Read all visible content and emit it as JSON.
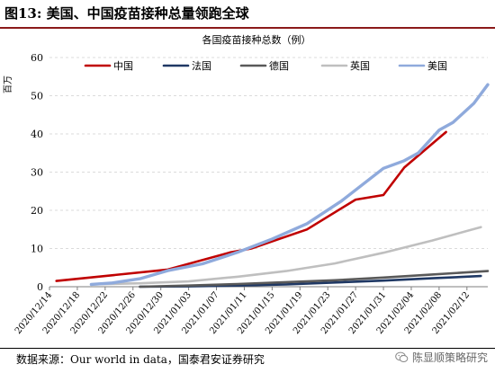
{
  "figure": {
    "title": "图13: 美国、中国疫苗接种总量领跑全球",
    "source": "数据来源：Our world in data，国泰君安证券研究",
    "watermark": "陈显顺策略研究",
    "watermark_icon": "wechat-icon"
  },
  "chart_data": {
    "type": "line",
    "title": "各国疫苗接种总数（例）",
    "ylabel": "百万",
    "xlabel": "",
    "ylim": [
      0,
      60
    ],
    "yticks": [
      0,
      10,
      20,
      30,
      40,
      50,
      60
    ],
    "xlim": [
      "2020-12-14",
      "2021-02-15"
    ],
    "xticks": [
      "2020/12/14",
      "2020/12/18",
      "2020/12/22",
      "2020/12/26",
      "2020/12/30",
      "2021/01/03",
      "2021/01/07",
      "2021/01/11",
      "2021/01/15",
      "2021/01/19",
      "2021/01/23",
      "2021/01/27",
      "2021/01/31",
      "2021/02/04",
      "2021/02/08",
      "2021/02/12"
    ],
    "grid": "horizontal-dashed",
    "legend_position": "top",
    "series": [
      {
        "name": "中国",
        "color": "#c00000",
        "width": 2.6,
        "points": [
          [
            "2020-12-15",
            1.5
          ],
          [
            "2020-12-31",
            4.5
          ],
          [
            "2021-01-09",
            9.0
          ],
          [
            "2021-01-12",
            10.0
          ],
          [
            "2021-01-20",
            15.0
          ],
          [
            "2021-01-27",
            22.8
          ],
          [
            "2021-01-31",
            24.0
          ],
          [
            "2021-02-03",
            31.2
          ],
          [
            "2021-02-09",
            40.5
          ]
        ]
      },
      {
        "name": "法国",
        "color": "#1f3864",
        "width": 2.6,
        "points": [
          [
            "2020-12-27",
            0.0
          ],
          [
            "2021-01-03",
            0.1
          ],
          [
            "2021-01-10",
            0.3
          ],
          [
            "2021-01-17",
            0.6
          ],
          [
            "2021-01-24",
            1.1
          ],
          [
            "2021-01-31",
            1.6
          ],
          [
            "2021-02-07",
            2.2
          ],
          [
            "2021-02-14",
            2.8
          ]
        ]
      },
      {
        "name": "德国",
        "color": "#595959",
        "width": 2.6,
        "points": [
          [
            "2020-12-27",
            0.0
          ],
          [
            "2021-01-03",
            0.3
          ],
          [
            "2021-01-10",
            0.7
          ],
          [
            "2021-01-17",
            1.2
          ],
          [
            "2021-01-24",
            1.7
          ],
          [
            "2021-01-31",
            2.4
          ],
          [
            "2021-02-07",
            3.2
          ],
          [
            "2021-02-15",
            4.1
          ]
        ]
      },
      {
        "name": "英国",
        "color": "#bfbfbf",
        "width": 2.6,
        "points": [
          [
            "2020-12-20",
            0.6
          ],
          [
            "2020-12-27",
            0.9
          ],
          [
            "2021-01-03",
            1.4
          ],
          [
            "2021-01-10",
            2.6
          ],
          [
            "2021-01-17",
            4.1
          ],
          [
            "2021-01-24",
            6.1
          ],
          [
            "2021-01-31",
            8.9
          ],
          [
            "2021-02-07",
            12.1
          ],
          [
            "2021-02-14",
            15.6
          ]
        ]
      },
      {
        "name": "美国",
        "color": "#8faadc",
        "width": 3.4,
        "points": [
          [
            "2020-12-20",
            0.6
          ],
          [
            "2020-12-23",
            1.0
          ],
          [
            "2020-12-27",
            2.1
          ],
          [
            "2020-12-31",
            4.2
          ],
          [
            "2021-01-05",
            6.0
          ],
          [
            "2021-01-10",
            9.0
          ],
          [
            "2021-01-15",
            12.5
          ],
          [
            "2021-01-20",
            16.5
          ],
          [
            "2021-01-25",
            22.5
          ],
          [
            "2021-01-31",
            31.0
          ],
          [
            "2021-02-03",
            33.0
          ],
          [
            "2021-02-05",
            35.0
          ],
          [
            "2021-02-08",
            41.0
          ],
          [
            "2021-02-10",
            43.0
          ],
          [
            "2021-02-13",
            48.0
          ],
          [
            "2021-02-15",
            52.9
          ]
        ]
      }
    ]
  }
}
